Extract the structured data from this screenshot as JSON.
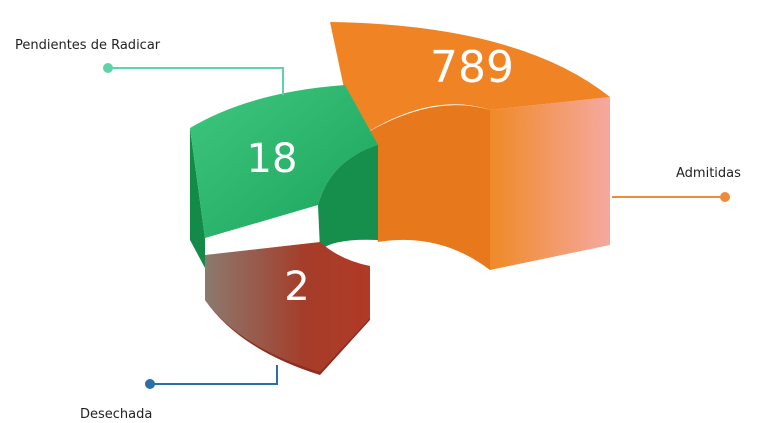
{
  "segments": [
    {
      "label": "Admitidas",
      "value": "789"
    },
    {
      "label": "Pendientes de Radicar",
      "value": "18"
    },
    {
      "label": "Desechada",
      "value": "2"
    }
  ]
}
